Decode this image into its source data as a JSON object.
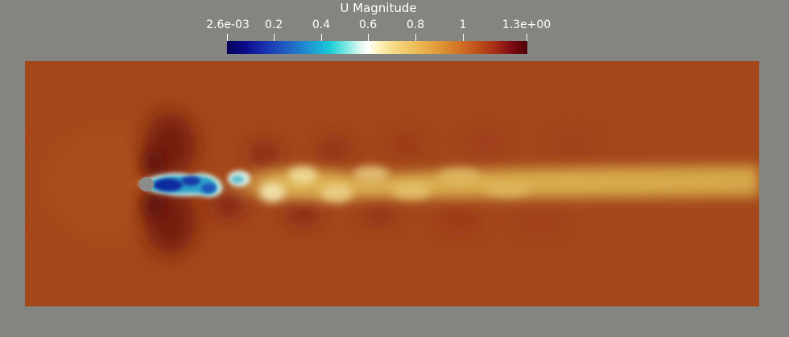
{
  "legend": {
    "title": "U Magnitude",
    "ticks": [
      {
        "label": "2.6e-03",
        "value": 0.0026
      },
      {
        "label": "0.2",
        "value": 0.2
      },
      {
        "label": "0.4",
        "value": 0.4
      },
      {
        "label": "0.6",
        "value": 0.6
      },
      {
        "label": "0.8",
        "value": 0.8
      },
      {
        "label": "1",
        "value": 1.0
      },
      {
        "label": "1.3e+00",
        "value": 1.3
      }
    ],
    "range": [
      0.0026,
      1.3
    ],
    "colormap": "turbo-like",
    "colors": {
      "low": "#050057",
      "mid": "#ffffff",
      "high": "#4f0008"
    }
  },
  "view": {
    "background": "#838580",
    "freestream_color": "#a4471b",
    "wake_color": "#d9ac4b",
    "cylinder_color": "#8c8c8c"
  }
}
